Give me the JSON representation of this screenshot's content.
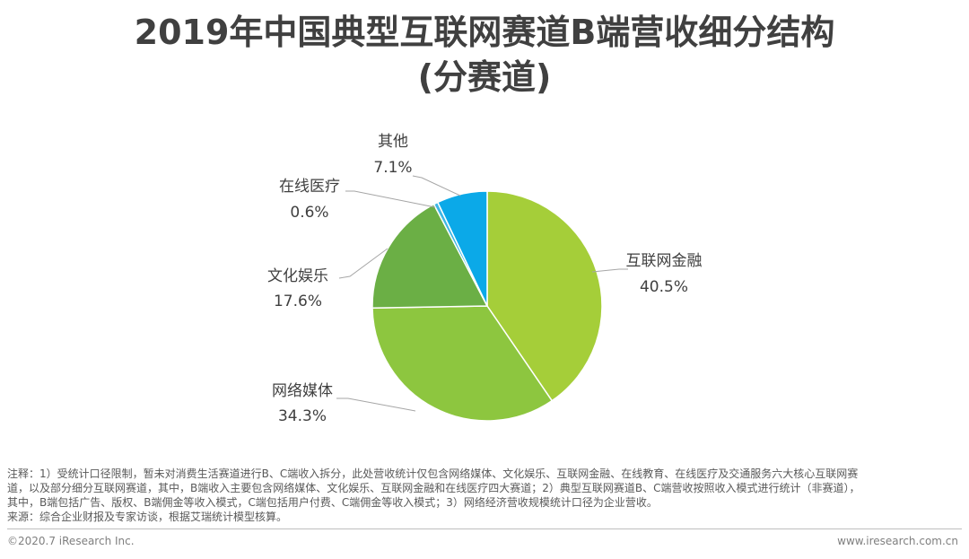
{
  "title_line1": "2019年中国典型互联网赛道B端营收细分结构",
  "title_line2": "(分赛道)",
  "chart_data": {
    "type": "pie",
    "title": "2019年中国典型互联网赛道B端营收细分结构(分赛道)",
    "slices": [
      {
        "label": "互联网金融",
        "value": 40.5,
        "display": "40.5%",
        "color": "#A5CE39"
      },
      {
        "label": "网络媒体",
        "value": 34.3,
        "display": "34.3%",
        "color": "#8DC63F"
      },
      {
        "label": "文化娱乐",
        "value": 17.6,
        "display": "17.6%",
        "color": "#6BAF45"
      },
      {
        "label": "在线医疗",
        "value": 0.6,
        "display": "0.6%",
        "color": "#3FB7E5"
      },
      {
        "label": "其他",
        "value": 7.1,
        "display": "7.1%",
        "color": "#0BA9E8"
      }
    ]
  },
  "notes": {
    "line1": "注释：1）受统计口径限制，暂未对消费生活赛道进行B、C端收入拆分，此处营收统计仅包含网络媒体、文化娱乐、互联网金融、在线教育、在线医疗及交通服务六大核心互联网赛",
    "line2": "道，以及部分细分互联网赛道，其中，B端收入主要包含网络媒体、文化娱乐、互联网金融和在线医疗四大赛道；2）典型互联网赛道B、C端营收按照收入模式进行统计（非赛道），",
    "line3": "其中，B端包括广告、版权、B端佣金等收入模式，C端包括用户付费、C端佣金等收入模式；3）网络经济营收规模统计口径为企业营收。",
    "source": "来源：综合企业财报及专家访谈，根据艾瑞统计模型核算。"
  },
  "footer": {
    "copyright": "©2020.7 iResearch Inc.",
    "website": "www.iresearch.com.cn"
  }
}
